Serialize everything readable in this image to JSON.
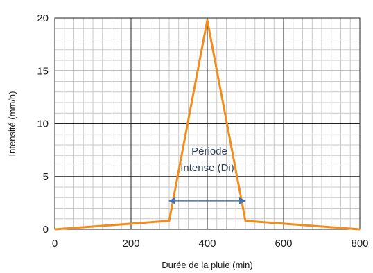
{
  "chart_data": {
    "type": "line",
    "xlabel": "Durée de la pluie (min)",
    "ylabel": "Intensité (mm/h)",
    "xlim": [
      0,
      800
    ],
    "ylim": [
      0,
      20
    ],
    "x_ticks": [
      "0",
      "200",
      "400",
      "600",
      "800"
    ],
    "y_ticks": [
      "0",
      "5",
      "10",
      "15",
      "20"
    ],
    "grid": true,
    "legend": "none",
    "series": [
      {
        "color": "#f28c1c",
        "points": [
          {
            "x": 0,
            "y": 0
          },
          {
            "x": 300,
            "y": 0.8
          },
          {
            "x": 400,
            "y": 19.8
          },
          {
            "x": 500,
            "y": 0.8
          },
          {
            "x": 800,
            "y": 0
          }
        ]
      }
    ],
    "annotations": [
      {
        "text_line1": "Période",
        "text_line2": "Intense (Di)",
        "x_start": 300,
        "x_end": 500,
        "y": 2.7,
        "arrow_color": "#3f73b8"
      }
    ]
  }
}
